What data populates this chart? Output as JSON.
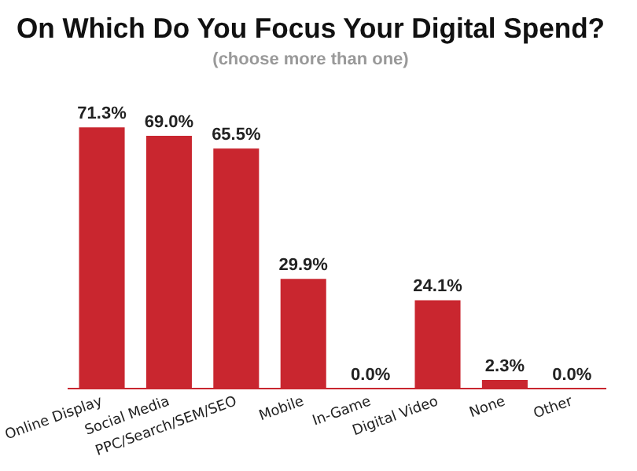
{
  "chart_data": {
    "type": "bar",
    "title": "On Which Do You Focus Your Digital Spend?",
    "subtitle": "(choose more than one)",
    "categories": [
      "Online Display",
      "Social Media",
      "PPC/Search/SEM/SEO",
      "Mobile",
      "In-Game",
      "Digital Video",
      "None",
      "Other"
    ],
    "values": [
      71.3,
      69.0,
      65.5,
      29.9,
      0.0,
      24.1,
      2.3,
      0.0
    ],
    "value_labels": [
      "71.3%",
      "69.0%",
      "65.5%",
      "29.9%",
      "0.0%",
      "24.1%",
      "2.3%",
      "0.0%"
    ],
    "color": "#c9262f",
    "grid": false,
    "legend": false
  }
}
